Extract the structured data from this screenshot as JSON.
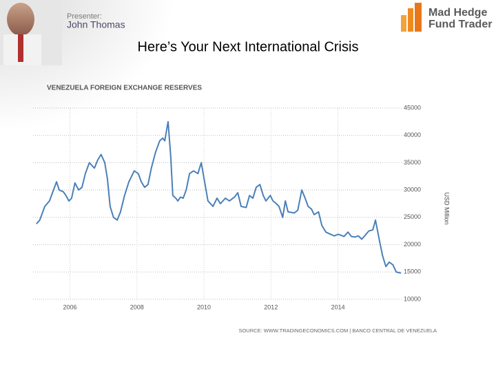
{
  "header": {
    "presenter_label": "Presenter:",
    "presenter_name": "John Thomas",
    "logo_line1": "Mad Hedge",
    "logo_line2": "Fund Trader"
  },
  "slide_title": "Here’s Your Next International Crisis",
  "chart_data": {
    "type": "line",
    "title": "VENEZUELA FOREIGN EXCHANGE RESERVES",
    "y_label": "USD Million",
    "source": "SOURCE: WWW.TRADINGECONOMICS.COM | BANCO CENTRAL DE VENEZUELA",
    "x": [
      2005.0,
      2005.1,
      2005.25,
      2005.39,
      2005.51,
      2005.6,
      2005.68,
      2005.8,
      2005.88,
      2005.97,
      2006.05,
      2006.15,
      2006.26,
      2006.36,
      2006.46,
      2006.58,
      2006.73,
      2006.83,
      2006.93,
      2007.04,
      2007.12,
      2007.2,
      2007.3,
      2007.41,
      2007.51,
      2007.63,
      2007.76,
      2007.92,
      2008.04,
      2008.13,
      2008.23,
      2008.33,
      2008.43,
      2008.56,
      2008.68,
      2008.77,
      2008.83,
      2008.93,
      2009.01,
      2009.07,
      2009.16,
      2009.22,
      2009.3,
      2009.38,
      2009.47,
      2009.57,
      2009.69,
      2009.82,
      2009.92,
      2010.02,
      2010.12,
      2010.27,
      2010.39,
      2010.49,
      2010.64,
      2010.76,
      2010.91,
      2011.01,
      2011.11,
      2011.26,
      2011.36,
      2011.46,
      2011.56,
      2011.67,
      2011.77,
      2011.85,
      2011.98,
      2012.06,
      2012.16,
      2012.24,
      2012.35,
      2012.43,
      2012.51,
      2012.7,
      2012.8,
      2012.92,
      2013.02,
      2013.11,
      2013.21,
      2013.29,
      2013.42,
      2013.52,
      2013.64,
      2013.74,
      2013.89,
      2014.01,
      2014.18,
      2014.3,
      2014.4,
      2014.51,
      2014.61,
      2014.71,
      2014.81,
      2014.92,
      2015.04,
      2015.12,
      2015.23,
      2015.33,
      2015.43,
      2015.53,
      2015.64,
      2015.74,
      2015.88
    ],
    "series": [
      {
        "color": "#4a7fb8",
        "values": [
          23800,
          24500,
          27000,
          28000,
          30000,
          31500,
          30000,
          29700,
          29000,
          28000,
          28500,
          31300,
          30000,
          30500,
          33000,
          35000,
          34000,
          35500,
          36500,
          35000,
          32000,
          27000,
          25000,
          24500,
          26000,
          29000,
          31500,
          33500,
          33000,
          31500,
          30500,
          31000,
          34000,
          37000,
          39000,
          39500,
          39000,
          42500,
          36000,
          29000,
          28500,
          28000,
          28700,
          28500,
          30000,
          33000,
          33500,
          33000,
          35000,
          31500,
          28000,
          27000,
          28500,
          27500,
          28500,
          28000,
          28700,
          29500,
          27000,
          26800,
          29000,
          28500,
          30500,
          31000,
          29000,
          28000,
          29000,
          28000,
          27500,
          27000,
          25000,
          28000,
          26000,
          25800,
          26300,
          30000,
          28500,
          27000,
          26500,
          25500,
          26000,
          23500,
          22300,
          22000,
          21600,
          21900,
          21500,
          22300,
          21500,
          21400,
          21600,
          21000,
          21700,
          22500,
          22700,
          24500,
          21000,
          18000,
          16000,
          16800,
          16300,
          15000,
          14800
        ]
      }
    ],
    "xlim": [
      2004.9,
      2015.9
    ],
    "xticks": [
      2006,
      2008,
      2010,
      2012,
      2014
    ],
    "ylim": [
      10000,
      45000
    ],
    "yticks": [
      10000,
      15000,
      20000,
      25000,
      30000,
      35000,
      40000,
      45000
    ],
    "grid": true
  }
}
